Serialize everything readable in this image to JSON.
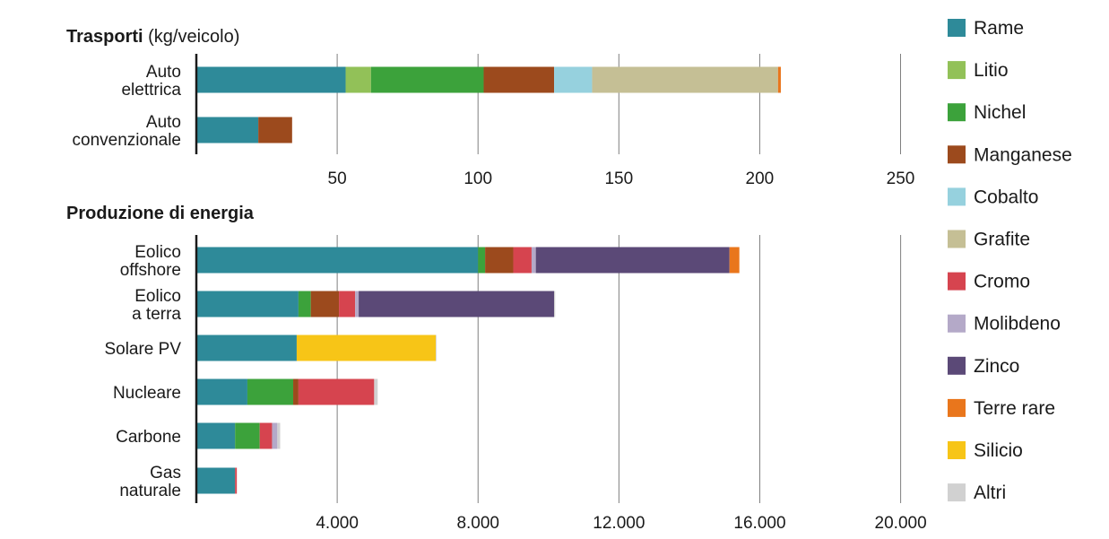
{
  "chart_data": [
    {
      "type": "bar",
      "orientation": "horizontal",
      "stacked": true,
      "title": "Trasporti",
      "subtitle": "(kg/veicolo)",
      "categories": [
        [
          "Auto",
          "elettrica"
        ],
        [
          "Auto",
          "convenzionale"
        ]
      ],
      "series": [
        {
          "name": "Rame",
          "values": [
            53,
            22
          ]
        },
        {
          "name": "Litio",
          "values": [
            9,
            0
          ]
        },
        {
          "name": "Nichel",
          "values": [
            40,
            0
          ]
        },
        {
          "name": "Manganese",
          "values": [
            25,
            12
          ]
        },
        {
          "name": "Cobalto",
          "values": [
            13.5,
            0
          ]
        },
        {
          "name": "Grafite",
          "values": [
            66,
            0
          ]
        },
        {
          "name": "Cromo",
          "values": [
            0,
            0
          ]
        },
        {
          "name": "Molibdeno",
          "values": [
            0,
            0
          ]
        },
        {
          "name": "Zinco",
          "values": [
            0,
            0
          ]
        },
        {
          "name": "Terre rare",
          "values": [
            1,
            0
          ]
        },
        {
          "name": "Silicio",
          "values": [
            0,
            0
          ]
        },
        {
          "name": "Altri",
          "values": [
            0,
            0
          ]
        }
      ],
      "xlim": [
        0,
        270
      ],
      "xticks": [
        50,
        100,
        150,
        200,
        250
      ],
      "xtick_labels": [
        "50",
        "100",
        "150",
        "200",
        "250"
      ],
      "grid": true
    },
    {
      "type": "bar",
      "orientation": "horizontal",
      "stacked": true,
      "title": "Produzione di energia",
      "categories": [
        [
          "Eolico",
          "offshore"
        ],
        [
          "Eolico",
          "a terra"
        ],
        [
          "Solare PV"
        ],
        [
          "Nucleare"
        ],
        [
          "Carbone"
        ],
        [
          "Gas",
          "naturale"
        ]
      ],
      "series": [
        {
          "name": "Rame",
          "values": [
            8000,
            2900,
            2850,
            1450,
            1100,
            1100
          ]
        },
        {
          "name": "Litio",
          "values": [
            0,
            0,
            0,
            0,
            0,
            0
          ]
        },
        {
          "name": "Nichel",
          "values": [
            200,
            350,
            0,
            1300,
            700,
            0
          ]
        },
        {
          "name": "Manganese",
          "values": [
            800,
            800,
            0,
            150,
            0,
            0
          ]
        },
        {
          "name": "Cobalto",
          "values": [
            0,
            0,
            0,
            0,
            0,
            0
          ]
        },
        {
          "name": "Grafite",
          "values": [
            0,
            0,
            0,
            0,
            0,
            0
          ]
        },
        {
          "name": "Cromo",
          "values": [
            520,
            460,
            0,
            2150,
            350,
            50
          ]
        },
        {
          "name": "Molibdeno",
          "values": [
            120,
            100,
            0,
            0,
            150,
            0
          ]
        },
        {
          "name": "Zinco",
          "values": [
            5500,
            5550,
            0,
            0,
            0,
            0
          ]
        },
        {
          "name": "Terre rare",
          "values": [
            280,
            0,
            0,
            0,
            0,
            0
          ]
        },
        {
          "name": "Silicio",
          "values": [
            0,
            0,
            3950,
            0,
            0,
            0
          ]
        },
        {
          "name": "Altri",
          "values": [
            0,
            30,
            20,
            100,
            80,
            0
          ]
        }
      ],
      "xlim": [
        0,
        22000
      ],
      "xticks": [
        4000,
        8000,
        12000,
        16000,
        20000
      ],
      "xtick_labels": [
        "4.000",
        "8.000",
        "12.000",
        "16.000",
        "20.000"
      ],
      "grid": true
    }
  ],
  "legend": {
    "placement": "right",
    "items": [
      {
        "name": "Rame",
        "color": "#2e8a99"
      },
      {
        "name": "Litio",
        "color": "#92c158"
      },
      {
        "name": "Nichel",
        "color": "#3ca23b"
      },
      {
        "name": "Manganese",
        "color": "#9c4a1d"
      },
      {
        "name": "Cobalto",
        "color": "#96d1de"
      },
      {
        "name": "Grafite",
        "color": "#c5bf95"
      },
      {
        "name": "Cromo",
        "color": "#d6444f"
      },
      {
        "name": "Molibdeno",
        "color": "#b4a9c8"
      },
      {
        "name": "Zinco",
        "color": "#5b4977"
      },
      {
        "name": "Terre rare",
        "color": "#e9761c"
      },
      {
        "name": "Silicio",
        "color": "#f7c517"
      },
      {
        "name": "Altri",
        "color": "#d1d1d1"
      }
    ]
  }
}
